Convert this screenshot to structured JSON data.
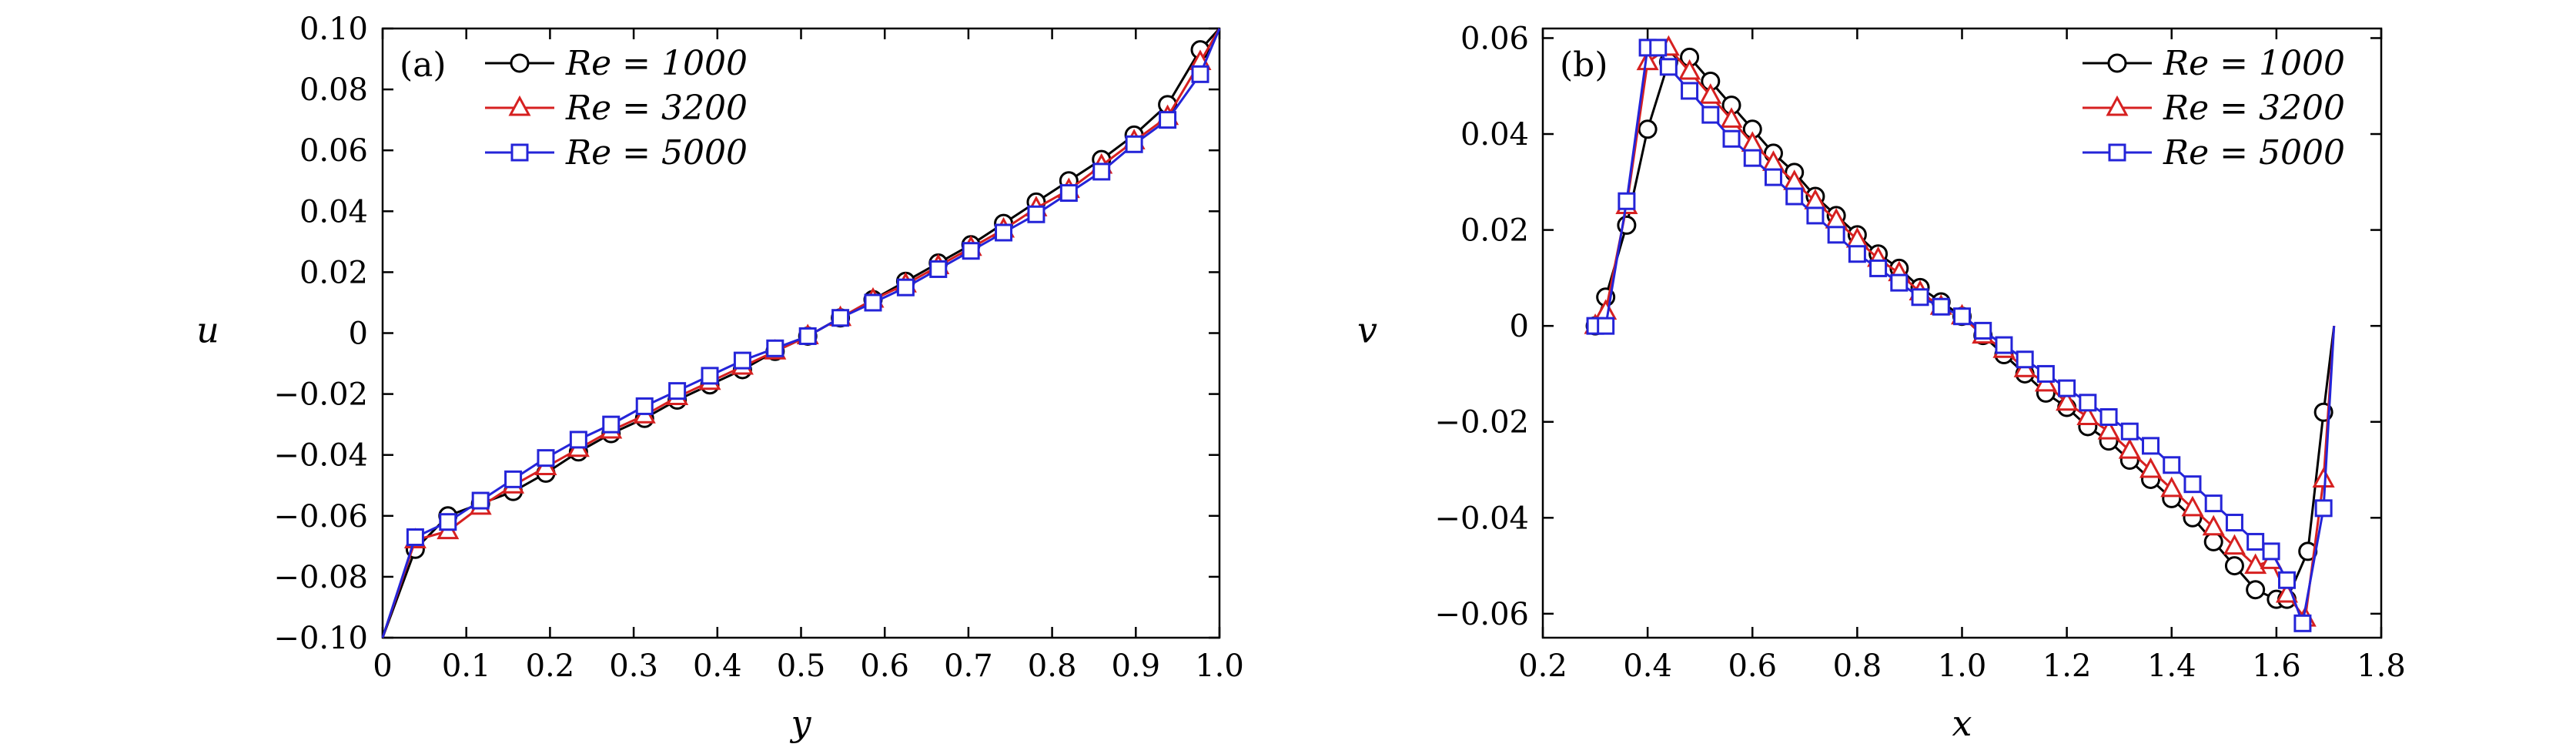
{
  "chart_data": [
    {
      "type": "line",
      "panel_label": "(a)",
      "xlabel": "y",
      "ylabel": "u",
      "xlim": [
        0,
        1.0
      ],
      "ylim": [
        -0.1,
        0.1
      ],
      "xticks": [
        "0",
        "0.1",
        "0.2",
        "0.3",
        "0.4",
        "0.5",
        "0.6",
        "0.7",
        "0.8",
        "0.9",
        "1.0"
      ],
      "yticks": [
        "−0.10",
        "−0.08",
        "−0.06",
        "−0.04",
        "−0.02",
        "0",
        "0.02",
        "0.04",
        "0.06",
        "0.08",
        "0.10"
      ],
      "legend_position": "top-left",
      "series": [
        {
          "name": "Re = 1000",
          "color": "#000000",
          "marker": "circle",
          "x": [
            0,
            0.039,
            0.078,
            0.117,
            0.156,
            0.195,
            0.234,
            0.273,
            0.313,
            0.352,
            0.391,
            0.43,
            0.469,
            0.508,
            0.547,
            0.586,
            0.625,
            0.664,
            0.703,
            0.742,
            0.781,
            0.82,
            0.859,
            0.898,
            0.938,
            0.977,
            1.0
          ],
          "y": [
            -0.1,
            -0.071,
            -0.06,
            -0.056,
            -0.052,
            -0.046,
            -0.039,
            -0.033,
            -0.028,
            -0.022,
            -0.017,
            -0.012,
            -0.006,
            -0.001,
            0.005,
            0.011,
            0.017,
            0.023,
            0.029,
            0.036,
            0.043,
            0.05,
            0.057,
            0.065,
            0.075,
            0.093,
            0.1
          ]
        },
        {
          "name": "Re = 3200",
          "color": "#d62020",
          "marker": "triangle",
          "x": [
            0,
            0.039,
            0.078,
            0.117,
            0.156,
            0.195,
            0.234,
            0.273,
            0.313,
            0.352,
            0.391,
            0.43,
            0.469,
            0.508,
            0.547,
            0.586,
            0.625,
            0.664,
            0.703,
            0.742,
            0.781,
            0.82,
            0.859,
            0.898,
            0.938,
            0.977,
            1.0
          ],
          "y": [
            -0.1,
            -0.068,
            -0.065,
            -0.057,
            -0.05,
            -0.044,
            -0.038,
            -0.032,
            -0.027,
            -0.021,
            -0.016,
            -0.011,
            -0.006,
            -0.001,
            0.005,
            0.011,
            0.016,
            0.022,
            0.028,
            0.034,
            0.041,
            0.047,
            0.055,
            0.063,
            0.071,
            0.089,
            0.1
          ]
        },
        {
          "name": "Re = 5000",
          "color": "#2424d8",
          "marker": "square",
          "x": [
            0,
            0.039,
            0.078,
            0.117,
            0.156,
            0.195,
            0.234,
            0.273,
            0.313,
            0.352,
            0.391,
            0.43,
            0.469,
            0.508,
            0.547,
            0.586,
            0.625,
            0.664,
            0.703,
            0.742,
            0.781,
            0.82,
            0.859,
            0.898,
            0.938,
            0.977,
            1.0
          ],
          "y": [
            -0.1,
            -0.067,
            -0.062,
            -0.055,
            -0.048,
            -0.041,
            -0.035,
            -0.03,
            -0.024,
            -0.019,
            -0.014,
            -0.009,
            -0.005,
            -0.001,
            0.005,
            0.01,
            0.015,
            0.021,
            0.027,
            0.033,
            0.039,
            0.046,
            0.053,
            0.062,
            0.07,
            0.085,
            0.1
          ]
        }
      ]
    },
    {
      "type": "line",
      "panel_label": "(b)",
      "xlabel": "x",
      "ylabel": "v",
      "xlim": [
        0.2,
        1.8
      ],
      "ylim": [
        -0.065,
        0.062
      ],
      "xticks": [
        "0.2",
        "0.4",
        "0.6",
        "0.8",
        "1.0",
        "1.2",
        "1.4",
        "1.6",
        "1.8"
      ],
      "yticks": [
        "−0.06",
        "−0.04",
        "−0.02",
        "0",
        "0.02",
        "0.04",
        "0.06"
      ],
      "legend_position": "top-right",
      "series": [
        {
          "name": "Re = 1000",
          "color": "#000000",
          "marker": "circle",
          "x": [
            0.283,
            0.3,
            0.32,
            0.36,
            0.4,
            0.44,
            0.48,
            0.52,
            0.56,
            0.6,
            0.64,
            0.68,
            0.72,
            0.76,
            0.8,
            0.84,
            0.88,
            0.92,
            0.96,
            1.0,
            1.04,
            1.08,
            1.12,
            1.16,
            1.2,
            1.24,
            1.28,
            1.32,
            1.36,
            1.4,
            1.44,
            1.48,
            1.52,
            1.56,
            1.6,
            1.62,
            1.66,
            1.69,
            1.71
          ],
          "y": [
            0.0,
            0.0,
            0.006,
            0.021,
            0.041,
            0.055,
            0.056,
            0.051,
            0.046,
            0.041,
            0.036,
            0.032,
            0.027,
            0.023,
            0.019,
            0.015,
            0.012,
            0.008,
            0.005,
            0.002,
            -0.002,
            -0.006,
            -0.01,
            -0.014,
            -0.017,
            -0.021,
            -0.024,
            -0.028,
            -0.032,
            -0.036,
            -0.04,
            -0.045,
            -0.05,
            -0.055,
            -0.057,
            -0.057,
            -0.047,
            -0.018,
            0.0
          ]
        },
        {
          "name": "Re = 3200",
          "color": "#d62020",
          "marker": "triangle",
          "x": [
            0.283,
            0.3,
            0.32,
            0.36,
            0.4,
            0.44,
            0.48,
            0.52,
            0.56,
            0.6,
            0.64,
            0.68,
            0.72,
            0.76,
            0.8,
            0.84,
            0.88,
            0.92,
            0.96,
            1.0,
            1.04,
            1.08,
            1.12,
            1.16,
            1.2,
            1.24,
            1.28,
            1.32,
            1.36,
            1.4,
            1.44,
            1.48,
            1.52,
            1.56,
            1.59,
            1.62,
            1.655,
            1.69,
            1.71
          ],
          "y": [
            0.0,
            0.0,
            0.003,
            0.025,
            0.055,
            0.058,
            0.053,
            0.048,
            0.043,
            0.038,
            0.034,
            0.03,
            0.026,
            0.022,
            0.018,
            0.014,
            0.011,
            0.007,
            0.004,
            0.002,
            -0.002,
            -0.005,
            -0.009,
            -0.012,
            -0.016,
            -0.019,
            -0.022,
            -0.026,
            -0.03,
            -0.034,
            -0.038,
            -0.042,
            -0.046,
            -0.05,
            -0.049,
            -0.056,
            -0.061,
            -0.032,
            0.0
          ]
        },
        {
          "name": "Re = 5000",
          "color": "#2424d8",
          "marker": "square",
          "x": [
            0.283,
            0.3,
            0.32,
            0.36,
            0.4,
            0.42,
            0.44,
            0.48,
            0.52,
            0.56,
            0.6,
            0.64,
            0.68,
            0.72,
            0.76,
            0.8,
            0.84,
            0.88,
            0.92,
            0.96,
            1.0,
            1.04,
            1.08,
            1.12,
            1.16,
            1.2,
            1.24,
            1.28,
            1.32,
            1.36,
            1.4,
            1.44,
            1.48,
            1.52,
            1.56,
            1.59,
            1.62,
            1.65,
            1.69,
            1.71
          ],
          "y": [
            0.0,
            0.0,
            0.0,
            0.026,
            0.058,
            0.058,
            0.054,
            0.049,
            0.044,
            0.039,
            0.035,
            0.031,
            0.027,
            0.023,
            0.019,
            0.015,
            0.012,
            0.009,
            0.006,
            0.004,
            0.002,
            -0.001,
            -0.004,
            -0.007,
            -0.01,
            -0.013,
            -0.016,
            -0.019,
            -0.022,
            -0.025,
            -0.029,
            -0.033,
            -0.037,
            -0.041,
            -0.045,
            -0.047,
            -0.053,
            -0.062,
            -0.038,
            0.0
          ]
        }
      ]
    }
  ]
}
